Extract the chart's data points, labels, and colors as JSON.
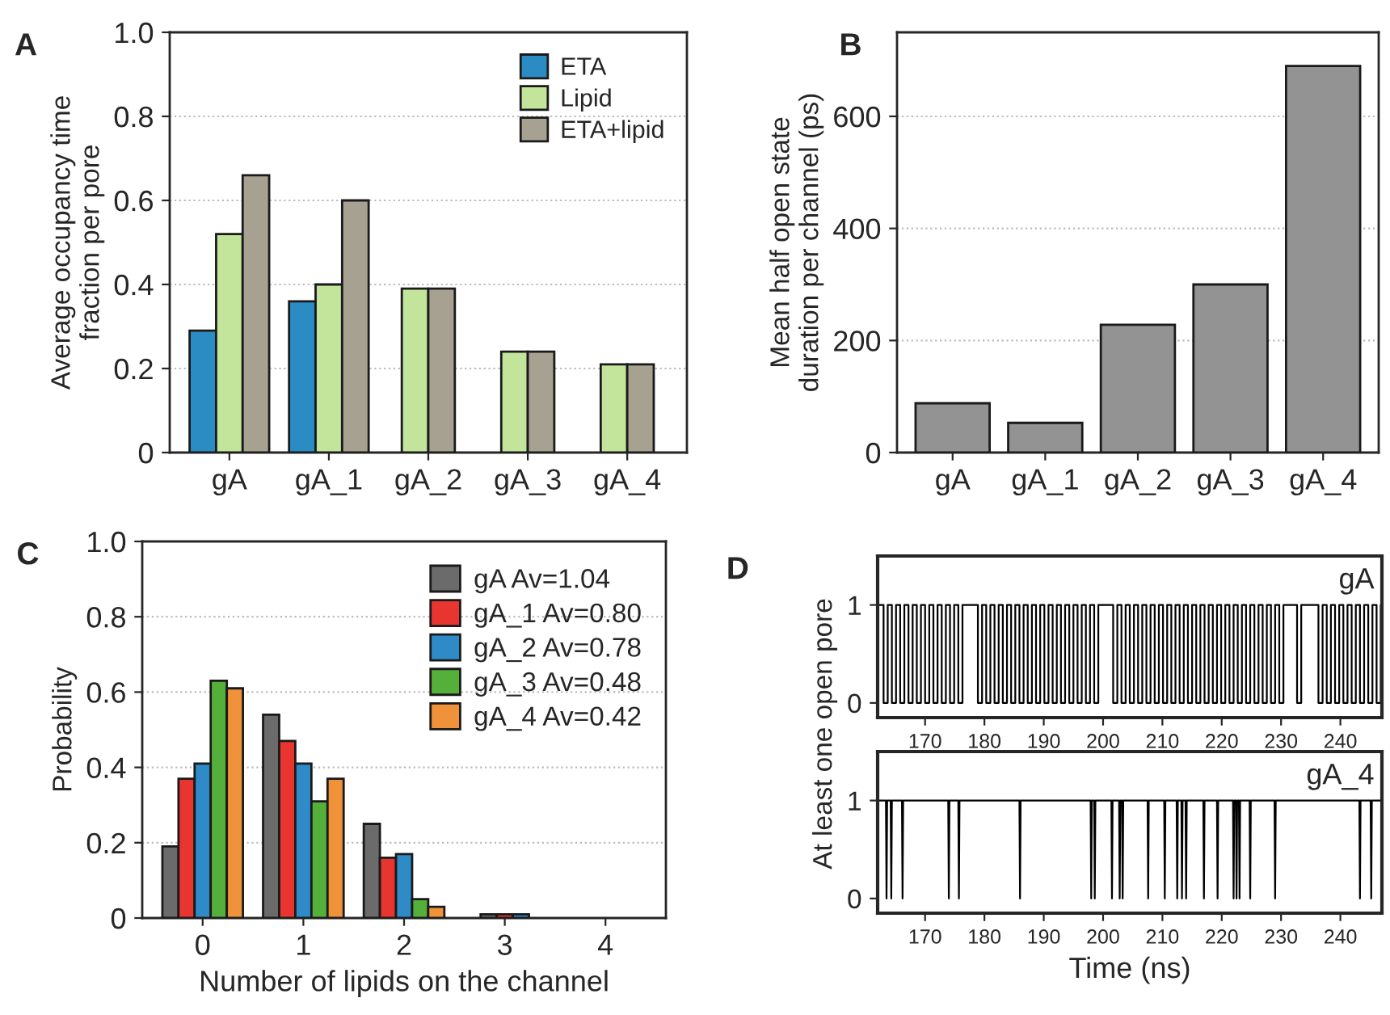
{
  "chart_data": [
    {
      "type": "bar",
      "title": "A",
      "ylabel": "Average occupancy time\nfraction per pore",
      "categories": [
        "gA",
        "gA_1",
        "gA_2",
        "gA_3",
        "gA_4"
      ],
      "series": [
        {
          "name": "ETA",
          "color": "#2b8cc4",
          "values": [
            0.29,
            0.36,
            null,
            null,
            null
          ]
        },
        {
          "name": "Lipid",
          "color": "#c2e59b",
          "values": [
            0.52,
            0.4,
            0.39,
            0.24,
            0.21
          ]
        },
        {
          "name": "ETA+lipid",
          "color": "#a7a191",
          "values": [
            0.66,
            0.6,
            0.39,
            0.24,
            0.21
          ]
        }
      ],
      "ylim": [
        0,
        1
      ],
      "yticks": [
        0,
        0.2,
        0.4,
        0.6,
        0.8,
        {
          "value": 1,
          "label": "1.0"
        }
      ],
      "grid": "y",
      "legend": "top right"
    },
    {
      "type": "bar",
      "title": "B",
      "ylabel": "Mean half open state\nduration per channel (ps)",
      "categories": [
        "gA",
        "gA_1",
        "gA_2",
        "gA_3",
        "gA_4"
      ],
      "series": [
        {
          "color": "#939393",
          "values": [
            88,
            53,
            228,
            300,
            690
          ]
        }
      ],
      "ylim": [
        0,
        750
      ],
      "yticks": [
        0,
        200,
        400,
        600
      ],
      "grid": "y"
    },
    {
      "type": "bar",
      "title": "C",
      "xlabel": "Number of lipids on the channel",
      "ylabel": "Probability",
      "categories": [
        "0",
        "1",
        "2",
        "3",
        "4"
      ],
      "series": [
        {
          "name": "gA Av=1.04",
          "color": "#6b6b6b",
          "values": [
            0.19,
            0.54,
            0.25,
            0.01,
            null
          ]
        },
        {
          "name": "gA_1 Av=0.80",
          "color": "#e8352f",
          "values": [
            0.37,
            0.47,
            0.16,
            0.01,
            null
          ]
        },
        {
          "name": "gA_2 Av=0.78",
          "color": "#2e8bc8",
          "values": [
            0.41,
            0.41,
            0.17,
            0.01,
            null
          ]
        },
        {
          "name": "gA_3 Av=0.48",
          "color": "#55b03b",
          "values": [
            0.63,
            0.31,
            0.05,
            null,
            null
          ]
        },
        {
          "name": "gA_4 Av=0.42",
          "color": "#f0923a",
          "values": [
            0.61,
            0.37,
            0.03,
            null,
            null
          ]
        }
      ],
      "ylim": [
        0,
        1
      ],
      "yticks": [
        0,
        0.2,
        0.4,
        0.6,
        0.8,
        {
          "value": 1,
          "label": "1.0"
        }
      ],
      "grid": "y",
      "legend": "top right"
    },
    {
      "type": "step",
      "title": "D",
      "ylabel": "At least one open pore",
      "annotations": [
        "gA"
      ],
      "series": [
        {
          "color": "#000000",
          "x": [
            162.3,
            163.0,
            163.7,
            164.4,
            165.1,
            165.8,
            166.5,
            167.2,
            167.9,
            168.6,
            169.3,
            170.0,
            170.7,
            171.4,
            172.1,
            172.8,
            173.5,
            174.2,
            174.9,
            175.6,
            176.3,
            178.2,
            178.9,
            179.6,
            180.3,
            181.0,
            181.7,
            182.4,
            183.1,
            183.8,
            184.5,
            185.2,
            185.9,
            186.6,
            187.3,
            188.0,
            188.7,
            189.4,
            190.1,
            190.8,
            191.5,
            192.2,
            192.9,
            193.6,
            194.3,
            195.0,
            195.7,
            196.4,
            197.1,
            197.8,
            198.5,
            199.2,
            201.0,
            201.7,
            202.4,
            203.1,
            203.8,
            204.5,
            205.2,
            205.9,
            206.6,
            207.3,
            208.0,
            208.7,
            209.4,
            210.1,
            210.8,
            211.5,
            212.2,
            212.9,
            213.6,
            214.3,
            215.0,
            215.7,
            216.4,
            217.1,
            217.8,
            218.5,
            219.2,
            219.9,
            220.6,
            221.3,
            222.0,
            222.7,
            223.4,
            224.1,
            224.8,
            225.5,
            226.2,
            226.9,
            227.6,
            228.3,
            229.0,
            229.7,
            230.4,
            232.0,
            232.7,
            233.4,
            235.6,
            236.3,
            237.0,
            237.7,
            238.4,
            239.1,
            239.8,
            240.5,
            241.2,
            241.9,
            242.6,
            243.3,
            244.0,
            244.7,
            245.4,
            246.1,
            246.8
          ],
          "values": [
            1,
            0,
            1,
            0,
            1,
            0,
            1,
            0,
            1,
            0,
            1,
            0,
            1,
            0,
            1,
            0,
            1,
            0,
            1,
            0,
            1,
            1,
            0,
            1,
            0,
            1,
            0,
            1,
            0,
            1,
            0,
            1,
            0,
            1,
            0,
            1,
            0,
            1,
            0,
            1,
            0,
            1,
            0,
            1,
            0,
            1,
            0,
            1,
            0,
            1,
            0,
            1,
            1,
            0,
            1,
            0,
            1,
            0,
            1,
            0,
            1,
            0,
            1,
            0,
            1,
            0,
            1,
            0,
            1,
            0,
            1,
            0,
            1,
            0,
            1,
            0,
            1,
            0,
            1,
            0,
            1,
            0,
            1,
            0,
            1,
            0,
            1,
            0,
            1,
            0,
            1,
            0,
            1,
            0,
            1,
            1,
            0,
            1,
            1,
            0,
            1,
            0,
            1,
            0,
            1,
            0,
            1,
            0,
            1,
            0,
            1,
            0,
            1,
            0,
            1
          ]
        }
      ],
      "xlim": [
        162,
        247
      ],
      "xticks": [
        170,
        180,
        190,
        200,
        210,
        220,
        230,
        240
      ],
      "ylim": [
        -0.15,
        1.5
      ],
      "yticks": [
        0,
        1
      ]
    },
    {
      "type": "line",
      "xlabel": "Time (ns)",
      "annotations": [
        "gA_4"
      ],
      "series": [
        {
          "color": "#000000",
          "x": [
            162.3,
            163.4,
            163.5,
            163.6,
            164.2,
            164.3,
            164.4,
            166.1,
            166.2,
            166.3,
            173.9,
            174.0,
            174.1,
            175.6,
            175.7,
            175.8,
            185.9,
            186.0,
            186.1,
            197.9,
            198.0,
            198.1,
            198.5,
            198.6,
            198.7,
            201.4,
            201.5,
            201.6,
            202.7,
            202.8,
            202.9,
            203.2,
            203.3,
            203.4,
            207.5,
            207.6,
            207.7,
            210.3,
            210.4,
            210.5,
            212.4,
            212.5,
            212.6,
            213.2,
            213.3,
            213.4,
            213.9,
            214.0,
            214.1,
            216.9,
            217.0,
            217.1,
            219.2,
            219.3,
            219.4,
            221.9,
            222.0,
            222.1,
            222.4,
            222.5,
            222.6,
            222.9,
            223.0,
            223.1,
            224.7,
            224.8,
            224.9,
            228.9,
            229.0,
            229.1,
            243.2,
            243.3,
            243.4,
            245.1,
            245.2,
            245.3,
            246.8
          ],
          "values": [
            1,
            1,
            0,
            1,
            1,
            0,
            1,
            1,
            0,
            1,
            1,
            0,
            1,
            1,
            0,
            1,
            1,
            0,
            1,
            1,
            0,
            1,
            1,
            0,
            1,
            1,
            0,
            1,
            1,
            0,
            1,
            1,
            0,
            1,
            1,
            0,
            1,
            1,
            0,
            1,
            1,
            0,
            1,
            1,
            0,
            1,
            1,
            0,
            1,
            1,
            0,
            1,
            1,
            0,
            1,
            1,
            0,
            1,
            1,
            0,
            1,
            1,
            0,
            1,
            1,
            0,
            1,
            1,
            0,
            1,
            1,
            0,
            1,
            1,
            0,
            1,
            1
          ]
        }
      ],
      "xlim": [
        162,
        247
      ],
      "xticks": [
        170,
        180,
        190,
        200,
        210,
        220,
        230,
        240
      ],
      "ylim": [
        -0.15,
        1.5
      ],
      "yticks": [
        0,
        1
      ]
    }
  ]
}
